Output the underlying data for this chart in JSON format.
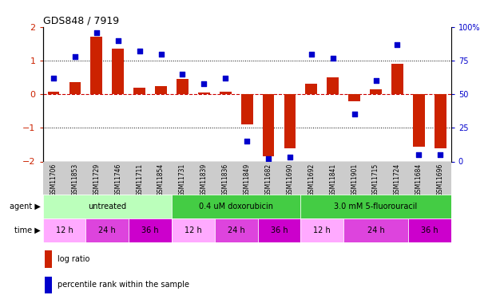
{
  "title": "GDS848 / 7919",
  "samples": [
    "GSM11706",
    "GSM11853",
    "GSM11729",
    "GSM11746",
    "GSM11711",
    "GSM11854",
    "GSM11731",
    "GSM11839",
    "GSM11836",
    "GSM11849",
    "GSM11682",
    "GSM11690",
    "GSM11692",
    "GSM11841",
    "GSM11901",
    "GSM11715",
    "GSM11724",
    "GSM11684",
    "GSM11696"
  ],
  "log_ratio": [
    0.08,
    0.35,
    1.7,
    1.35,
    0.2,
    0.25,
    0.45,
    0.05,
    0.08,
    -0.9,
    -1.85,
    -1.6,
    0.3,
    0.5,
    -0.2,
    0.15,
    0.9,
    -1.55,
    -1.6
  ],
  "percentile": [
    62,
    78,
    96,
    90,
    82,
    80,
    65,
    58,
    62,
    15,
    2,
    3,
    80,
    77,
    35,
    60,
    87,
    5,
    5
  ],
  "ylim_left": [
    -2,
    2
  ],
  "ylim_right": [
    0,
    100
  ],
  "bar_color": "#cc2200",
  "dot_color": "#0000cc",
  "hline0_color": "#cc0000",
  "hline1_color": "#000000",
  "agent_groups": [
    {
      "label": "untreated",
      "start": 0,
      "end": 6,
      "color": "#bbffbb"
    },
    {
      "label": "0.4 uM doxorubicin",
      "start": 6,
      "end": 12,
      "color": "#44cc44"
    },
    {
      "label": "3.0 mM 5-fluorouracil",
      "start": 12,
      "end": 19,
      "color": "#44cc44"
    }
  ],
  "time_groups": [
    {
      "label": "12 h",
      "start": 0,
      "end": 2,
      "color": "#ffaaff"
    },
    {
      "label": "24 h",
      "start": 2,
      "end": 4,
      "color": "#dd44dd"
    },
    {
      "label": "36 h",
      "start": 4,
      "end": 6,
      "color": "#cc00cc"
    },
    {
      "label": "12 h",
      "start": 6,
      "end": 8,
      "color": "#ffaaff"
    },
    {
      "label": "24 h",
      "start": 8,
      "end": 10,
      "color": "#dd44dd"
    },
    {
      "label": "36 h",
      "start": 10,
      "end": 12,
      "color": "#cc00cc"
    },
    {
      "label": "12 h",
      "start": 12,
      "end": 14,
      "color": "#ffaaff"
    },
    {
      "label": "24 h",
      "start": 14,
      "end": 17,
      "color": "#dd44dd"
    },
    {
      "label": "36 h",
      "start": 17,
      "end": 19,
      "color": "#cc00cc"
    }
  ],
  "right_ylabel_color": "#0000cc",
  "left_ylabel_color": "#cc2200",
  "xlabel_bg": "#cccccc",
  "agent_label_color": "#000000",
  "time_label_color": "#000000"
}
